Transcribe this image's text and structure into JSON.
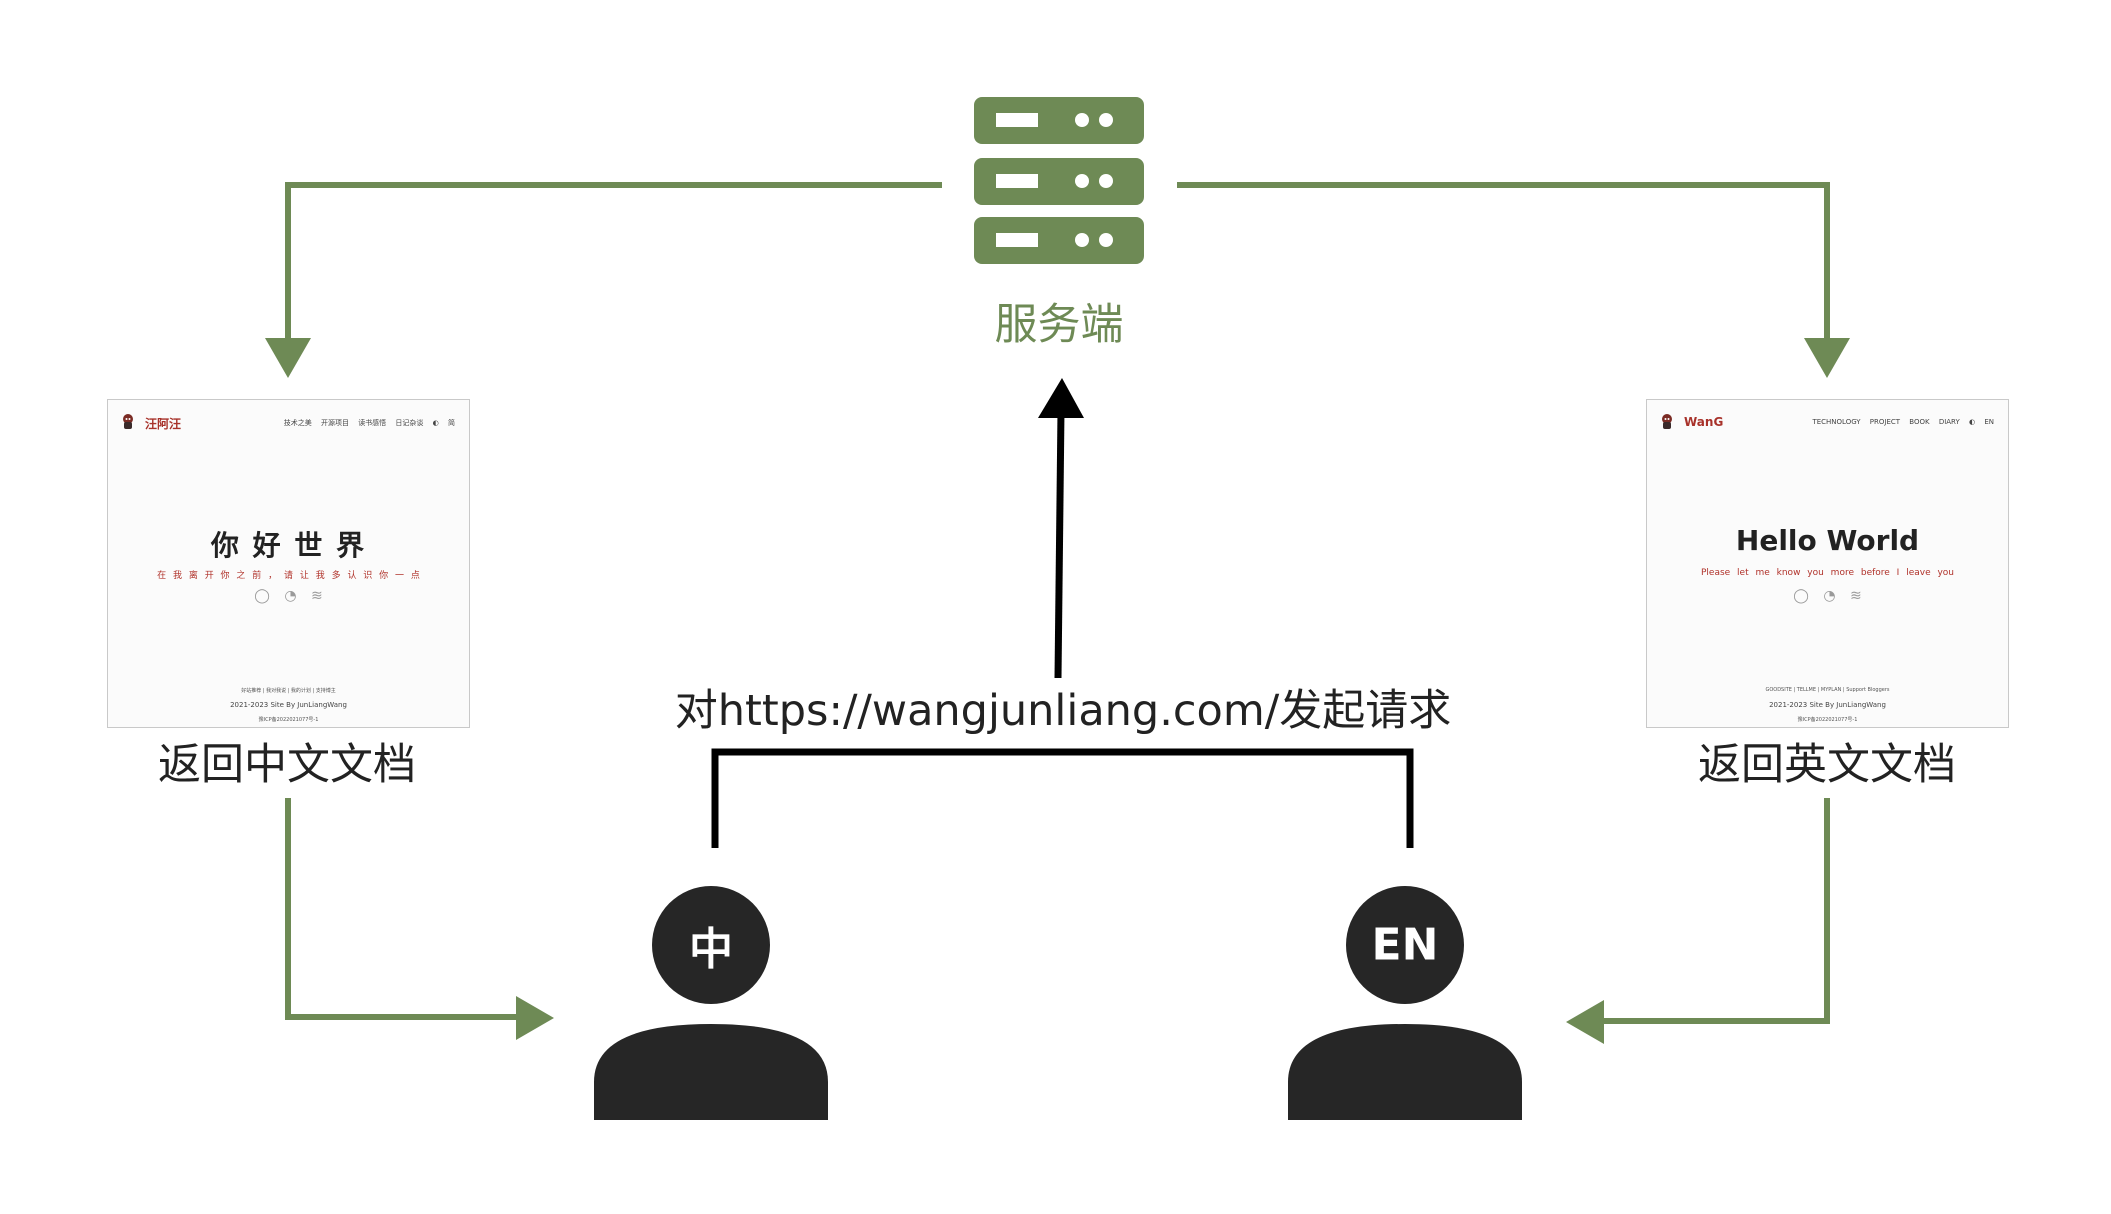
{
  "colors": {
    "accent": "#6e8a55",
    "dark": "#262626",
    "red": "#b0322a"
  },
  "server": {
    "label": "服务端",
    "icon": "server-icon"
  },
  "request": {
    "label": "对https://wangjunliang.com/发起请求"
  },
  "zh_response": {
    "label": "返回中文文档"
  },
  "en_response": {
    "label": "返回英文文档"
  },
  "zh_user": {
    "badge": "中",
    "icon": "user-icon"
  },
  "en_user": {
    "badge": "EN",
    "icon": "user-icon"
  },
  "zh_site": {
    "brand": "汪阿汪",
    "nav": [
      "技术之美",
      "开源项目",
      "读书感悟",
      "日记杂谈",
      "◐",
      "简"
    ],
    "hero": "你 好 世 界",
    "subtitle": "在 我 离 开 你 之 前 ， 请 让 我 多 认 识 你 一 点",
    "social_icons": [
      "◯",
      "◔",
      "≋"
    ],
    "footer_links": "好站推荐 | 我对我说 | 我的计划 | 支持博主",
    "footer_copy": "2021-2023 Site By JunLiangWang",
    "footer_icp": "豫ICP备2022021077号-1"
  },
  "en_site": {
    "brand": "WanG",
    "nav": [
      "TECHNOLOGY",
      "PROJECT",
      "BOOK",
      "DIARY",
      "◐",
      "EN"
    ],
    "hero": "Hello World",
    "subtitle": "Please let me know you more before I leave you",
    "social_icons": [
      "◯",
      "◔",
      "≋"
    ],
    "footer_links": "GOODSITE | TELLME | MYPLAN | Support Bloggers",
    "footer_copy": "2021-2023 Site By JunLiangWang",
    "footer_icp": "豫ICP备2022021077号-1"
  }
}
